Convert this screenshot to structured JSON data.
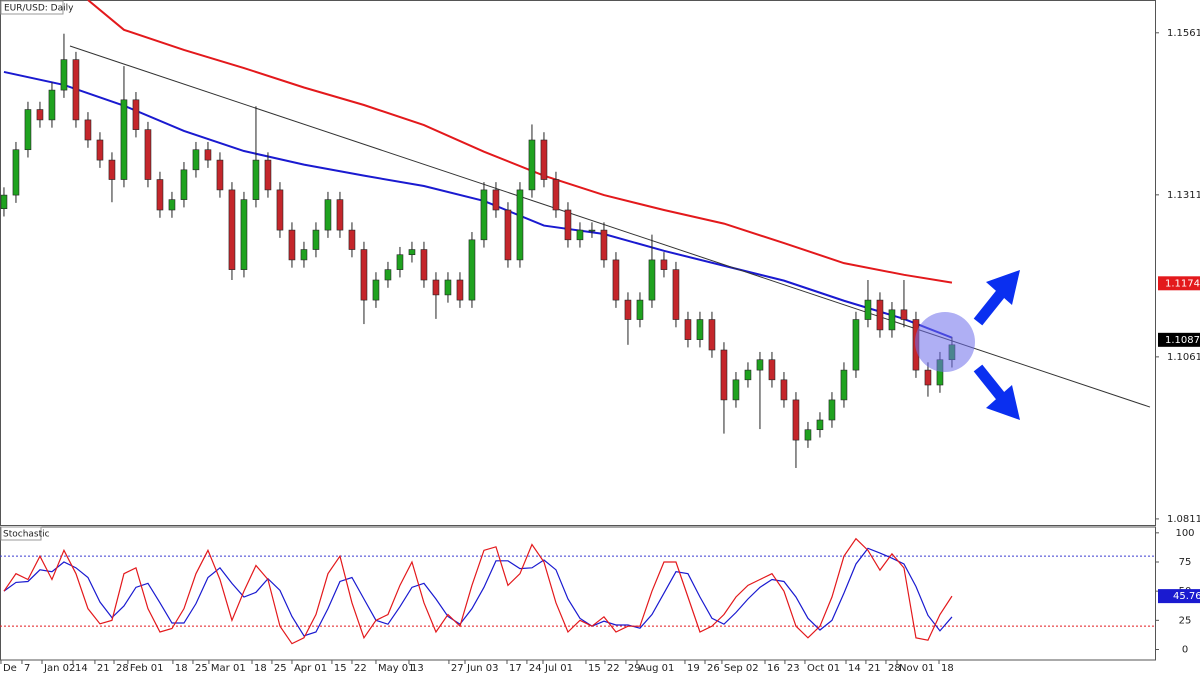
{
  "chart_data": {
    "type": "candlestick",
    "title": "EUR/USD: Daily",
    "open": [
      1.129,
      1.1311,
      1.1381,
      1.1443,
      1.1427,
      1.1473,
      1.152,
      1.1427,
      1.1396,
      1.1365,
      1.1335,
      1.1458,
      1.1412,
      1.1335,
      1.1288,
      1.1304,
      1.135,
      1.1381,
      1.1365,
      1.1319,
      1.1196,
      1.1304,
      1.1365,
      1.1319,
      1.1257,
      1.1211,
      1.1227,
      1.1257,
      1.1304,
      1.1257,
      1.1227,
      1.1149,
      1.118,
      1.1196,
      1.1219,
      1.1227,
      1.118,
      1.1157,
      1.118,
      1.1149,
      1.1242,
      1.1319,
      1.1288,
      1.1211,
      1.1319,
      1.1396,
      1.1335,
      1.1288,
      1.1242,
      1.1257,
      1.1257,
      1.1211,
      1.1149,
      1.1119,
      1.1149,
      1.1211,
      1.1196,
      1.1119,
      1.1088,
      1.1119,
      1.1072,
      1.0995,
      1.1026,
      1.1041,
      1.1057,
      1.1026,
      1.0995,
      1.0933,
      1.0949,
      1.0964,
      1.0995,
      1.1041,
      1.1119,
      1.1149,
      1.1103,
      1.1134,
      1.1119,
      1.1041,
      1.1018,
      1.1057
    ],
    "high": [
      1.1323,
      1.1393,
      1.1455,
      1.1455,
      1.1485,
      1.156,
      1.1532,
      1.1439,
      1.1408,
      1.1377,
      1.151,
      1.147,
      1.1424,
      1.1347,
      1.1316,
      1.1362,
      1.1393,
      1.1393,
      1.1377,
      1.1331,
      1.1316,
      1.1448,
      1.1377,
      1.1331,
      1.1269,
      1.1239,
      1.1269,
      1.1316,
      1.1316,
      1.1269,
      1.1239,
      1.1192,
      1.1208,
      1.1231,
      1.1239,
      1.1239,
      1.1192,
      1.1192,
      1.1192,
      1.1254,
      1.1331,
      1.1331,
      1.13,
      1.1331,
      1.142,
      1.1408,
      1.1347,
      1.13,
      1.1269,
      1.1269,
      1.1269,
      1.1223,
      1.1161,
      1.1161,
      1.125,
      1.1223,
      1.1208,
      1.1131,
      1.1131,
      1.1131,
      1.1084,
      1.1038,
      1.1053,
      1.1069,
      1.1069,
      1.1038,
      1.1007,
      1.0961,
      1.0976,
      1.1007,
      1.1053,
      1.1131,
      1.118,
      1.1161,
      1.1146,
      1.118,
      1.1131,
      1.1053,
      1.1069,
      1.1092
    ],
    "low": [
      1.1278,
      1.1299,
      1.1369,
      1.1415,
      1.1415,
      1.1461,
      1.1415,
      1.1384,
      1.1353,
      1.13,
      1.1323,
      1.14,
      1.1323,
      1.1276,
      1.1276,
      1.1292,
      1.1338,
      1.1353,
      1.1307,
      1.118,
      1.1184,
      1.1292,
      1.1307,
      1.1245,
      1.1199,
      1.1199,
      1.1215,
      1.1245,
      1.1245,
      1.1215,
      1.1112,
      1.1137,
      1.1168,
      1.1184,
      1.1207,
      1.1168,
      1.112,
      1.1145,
      1.1137,
      1.1137,
      1.123,
      1.1276,
      1.1199,
      1.1199,
      1.1307,
      1.1323,
      1.1276,
      1.123,
      1.123,
      1.1245,
      1.1199,
      1.1137,
      1.108,
      1.1107,
      1.1137,
      1.1184,
      1.1107,
      1.1076,
      1.1076,
      1.106,
      1.0943,
      1.0983,
      1.1014,
      1.095,
      1.1014,
      1.0983,
      1.089,
      1.0921,
      1.0937,
      1.0952,
      1.0983,
      1.1029,
      1.1107,
      1.1091,
      1.1091,
      1.1107,
      1.1029,
      1.1,
      1.1006,
      1.1045
    ],
    "close": [
      1.1311,
      1.1381,
      1.1443,
      1.1427,
      1.1473,
      1.152,
      1.1427,
      1.1396,
      1.1365,
      1.1335,
      1.1458,
      1.1412,
      1.1335,
      1.1288,
      1.1304,
      1.135,
      1.1381,
      1.1365,
      1.1319,
      1.1196,
      1.1304,
      1.1365,
      1.1319,
      1.1257,
      1.1211,
      1.1227,
      1.1257,
      1.1304,
      1.1257,
      1.1227,
      1.1149,
      1.118,
      1.1196,
      1.1219,
      1.1227,
      1.118,
      1.1157,
      1.118,
      1.1149,
      1.1242,
      1.1319,
      1.1288,
      1.1211,
      1.1319,
      1.1396,
      1.1335,
      1.1288,
      1.1242,
      1.1257,
      1.1257,
      1.1211,
      1.1149,
      1.1119,
      1.1149,
      1.1211,
      1.1196,
      1.1119,
      1.1088,
      1.1119,
      1.1072,
      1.0995,
      1.1026,
      1.1041,
      1.1057,
      1.1026,
      1.0995,
      1.0933,
      1.0949,
      1.0964,
      1.0995,
      1.1041,
      1.1119,
      1.1149,
      1.1103,
      1.1134,
      1.1119,
      1.1041,
      1.1018,
      1.1057,
      1.108
    ],
    "up_color": "#1fa21f",
    "down_color": "#c4262b",
    "lines": [
      {
        "color": "#1a1ad0",
        "x": [
          0,
          5,
          10,
          15,
          20,
          25,
          30,
          35,
          40,
          45,
          50,
          55,
          60,
          65,
          70,
          75,
          79
        ],
        "values": [
          1.1501,
          1.1481,
          1.1449,
          1.141,
          1.1379,
          1.1358,
          1.1341,
          1.1325,
          1.1302,
          1.1264,
          1.1251,
          1.1225,
          1.1202,
          1.1179,
          1.1148,
          1.112,
          1.1091
        ]
      },
      {
        "color": "#e3191c",
        "x": [
          7,
          10,
          15,
          20,
          25,
          30,
          35,
          40,
          45,
          50,
          55,
          60,
          65,
          70,
          75,
          79
        ],
        "values": [
          1.1612,
          1.1566,
          1.1535,
          1.1507,
          1.1477,
          1.145,
          1.1419,
          1.1378,
          1.1341,
          1.1311,
          1.1288,
          1.1267,
          1.1237,
          1.1206,
          1.1188,
          1.1176
        ]
      },
      {
        "color": "#333333",
        "x": [
          5.5,
          95.5
        ],
        "values": [
          1.1541,
          1.0984
        ]
      }
    ],
    "xlim": [
      -0.33,
      95.92
    ],
    "ylim": [
      1.0802,
      1.1612
    ],
    "yticks": [
      1.08114,
      1.10614,
      1.13114,
      1.15614
    ],
    "price_tags": [
      {
        "value": 1.11749,
        "color": "#e3191c"
      },
      {
        "value": 1.10877,
        "color": "#000000"
      }
    ],
    "xticks": [
      {
        "value": -0.25,
        "label": "De"
      },
      {
        "value": 1.5,
        "label": "7"
      },
      {
        "value": 3.17,
        "label": "Jan 02"
      },
      {
        "value": 5.75,
        "label": "14"
      },
      {
        "value": 7.58,
        "label": "21"
      },
      {
        "value": 9.17,
        "label": "28"
      },
      {
        "value": 10.33,
        "label": "Feb 01"
      },
      {
        "value": 14.08,
        "label": "18"
      },
      {
        "value": 15.75,
        "label": "25"
      },
      {
        "value": 17.08,
        "label": "Mar 01"
      },
      {
        "value": 20.67,
        "label": "18"
      },
      {
        "value": 22.33,
        "label": "25"
      },
      {
        "value": 24,
        "label": "Apr 01"
      },
      {
        "value": 27.33,
        "label": "15"
      },
      {
        "value": 29,
        "label": "22"
      },
      {
        "value": 31,
        "label": "May 01"
      },
      {
        "value": 33.75,
        "label": "13"
      },
      {
        "value": 37.08,
        "label": "27"
      },
      {
        "value": 38.42,
        "label": "Jun 03"
      },
      {
        "value": 41.92,
        "label": "17"
      },
      {
        "value": 43.58,
        "label": "24"
      },
      {
        "value": 44.92,
        "label": "Jul 01"
      },
      {
        "value": 48.5,
        "label": "15"
      },
      {
        "value": 50.08,
        "label": "22"
      },
      {
        "value": 51.83,
        "label": "29"
      },
      {
        "value": 52.75,
        "label": "Aug 01"
      },
      {
        "value": 56.75,
        "label": "19"
      },
      {
        "value": 58.42,
        "label": "26"
      },
      {
        "value": 59.83,
        "label": "Sep 02"
      },
      {
        "value": 63.42,
        "label": "16"
      },
      {
        "value": 65.08,
        "label": "23"
      },
      {
        "value": 66.75,
        "label": "Oct 01"
      },
      {
        "value": 70.17,
        "label": "14"
      },
      {
        "value": 71.83,
        "label": "21"
      },
      {
        "value": 73.5,
        "label": "28"
      },
      {
        "value": 74.42,
        "label": "Nov 01"
      },
      {
        "value": 77.92,
        "label": "18"
      }
    ],
    "stochastic": {
      "title": "Stochastic",
      "ylim": [
        -9,
        105
      ],
      "yticks": [
        0,
        25,
        50,
        75,
        100
      ],
      "levels": [
        {
          "value": 80,
          "color": "#3b3bd0"
        },
        {
          "value": 20,
          "color": "#e3191c"
        }
      ],
      "tag": {
        "value": 45.76,
        "color": "#1a1ad0"
      },
      "k": {
        "color": "#e3191c",
        "values": [
          50,
          65,
          60,
          80,
          60,
          85,
          65,
          35,
          22,
          25,
          65,
          70,
          35,
          15,
          18,
          35,
          65,
          85,
          60,
          25,
          50,
          72,
          60,
          20,
          5,
          10,
          30,
          65,
          80,
          40,
          10,
          25,
          30,
          55,
          75,
          40,
          15,
          30,
          20,
          55,
          85,
          88,
          55,
          65,
          90,
          75,
          40,
          15,
          25,
          20,
          28,
          15,
          20,
          20,
          50,
          75,
          75,
          45,
          15,
          20,
          30,
          45,
          55,
          60,
          65,
          50,
          20,
          10,
          20,
          45,
          80,
          95,
          85,
          68,
          82,
          70,
          10,
          8,
          30,
          45.76
        ]
      },
      "d": {
        "color": "#1a1ad0",
        "values": [
          50,
          57.5,
          58.3,
          68.3,
          66.7,
          75,
          70,
          61.7,
          40.7,
          27.3,
          37.3,
          53.3,
          56.7,
          40,
          22.7,
          22.7,
          39.3,
          61.7,
          70,
          56.7,
          45,
          49,
          60.7,
          50.7,
          28.3,
          11.7,
          15,
          35,
          58.3,
          61.7,
          43.3,
          25,
          21.7,
          36.7,
          53.3,
          56.7,
          43.3,
          28.3,
          21.7,
          35,
          53.3,
          76,
          76,
          69.3,
          70,
          76.7,
          68.3,
          43.3,
          26.7,
          20,
          24.3,
          21,
          21,
          18.3,
          30,
          48.3,
          66.7,
          65,
          45,
          26.7,
          21.7,
          31.7,
          43.3,
          53.3,
          60,
          58.3,
          45,
          26.7,
          16.7,
          25,
          48.3,
          73.3,
          86.7,
          82.7,
          78.3,
          73.3,
          54,
          29.3,
          16,
          27.9
        ]
      }
    }
  }
}
